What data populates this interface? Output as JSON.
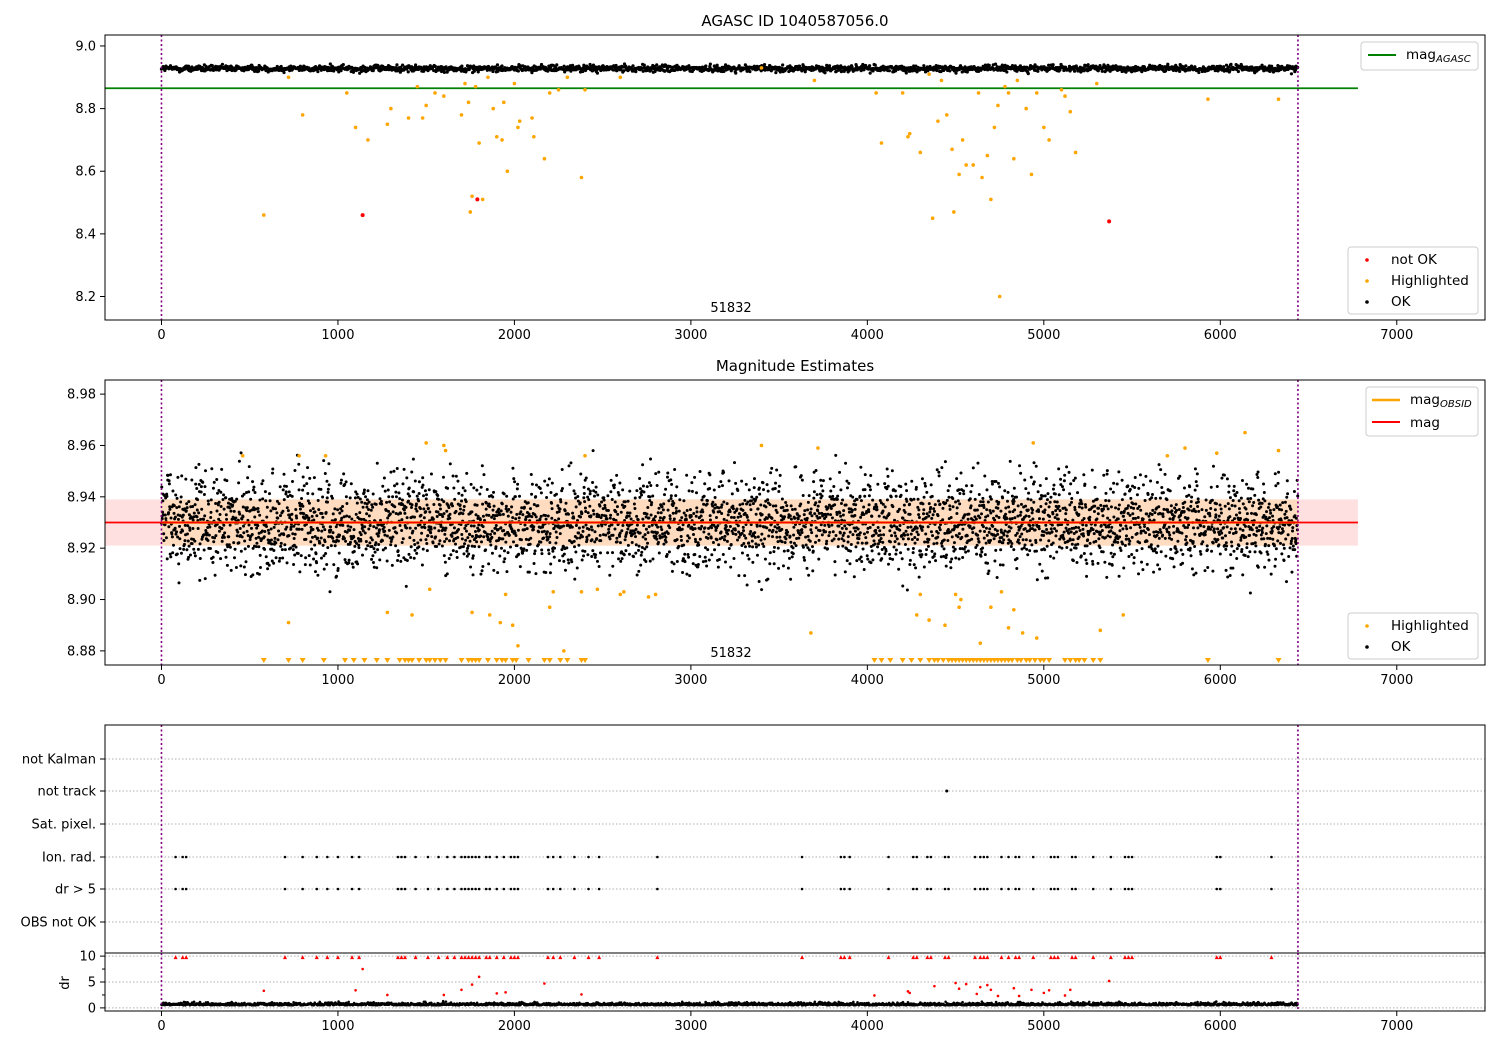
{
  "colors": {
    "ok": "#000000",
    "highlighted": "#ffa500",
    "not_ok": "#ff0000",
    "mag_agasc_line": "#008000",
    "mag_line": "#ff0000",
    "mag_obsid_line": "#ffa500",
    "band_fill": "#ffcccc",
    "obsid_band_fill": "#ffd8b0",
    "vline": "#800080",
    "grid": "#b0b0b0"
  },
  "chart_data": [
    {
      "type": "scatter",
      "title": "AGASC ID 1040587056.0",
      "xlim": [
        -320,
        7500
      ],
      "ylim": [
        8.125,
        9.035
      ],
      "xticks": [
        0,
        1000,
        2000,
        3000,
        4000,
        5000,
        6000,
        7000
      ],
      "yticks": [
        8.2,
        8.4,
        8.6,
        8.8,
        9.0
      ],
      "ytick_labels": [
        "8.2",
        "8.4",
        "8.6",
        "8.8",
        "9.0"
      ],
      "ok_band": {
        "center": 8.928,
        "spread": 0.01,
        "x_range": [
          0,
          6440
        ]
      },
      "highlighted_points": [
        [
          580,
          8.46
        ],
        [
          720,
          8.9
        ],
        [
          800,
          8.78
        ],
        [
          1050,
          8.85
        ],
        [
          1100,
          8.74
        ],
        [
          1170,
          8.7
        ],
        [
          1280,
          8.75
        ],
        [
          1300,
          8.8
        ],
        [
          1400,
          8.77
        ],
        [
          1450,
          8.87
        ],
        [
          1480,
          8.77
        ],
        [
          1500,
          8.81
        ],
        [
          1550,
          8.85
        ],
        [
          1600,
          8.84
        ],
        [
          1700,
          8.78
        ],
        [
          1720,
          8.88
        ],
        [
          1740,
          8.82
        ],
        [
          1750,
          8.47
        ],
        [
          1760,
          8.52
        ],
        [
          1780,
          8.87
        ],
        [
          1800,
          8.69
        ],
        [
          1820,
          8.51
        ],
        [
          1850,
          8.9
        ],
        [
          1880,
          8.8
        ],
        [
          1900,
          8.71
        ],
        [
          1930,
          8.7
        ],
        [
          1940,
          8.82
        ],
        [
          1960,
          8.6
        ],
        [
          2000,
          8.88
        ],
        [
          2020,
          8.74
        ],
        [
          2030,
          8.76
        ],
        [
          2100,
          8.77
        ],
        [
          2110,
          8.71
        ],
        [
          2170,
          8.64
        ],
        [
          2200,
          8.85
        ],
        [
          2250,
          8.86
        ],
        [
          2300,
          8.9
        ],
        [
          2380,
          8.58
        ],
        [
          2400,
          8.86
        ],
        [
          2600,
          8.9
        ],
        [
          3400,
          8.93
        ],
        [
          3700,
          8.89
        ],
        [
          4050,
          8.85
        ],
        [
          4080,
          8.69
        ],
        [
          4200,
          8.85
        ],
        [
          4230,
          8.71
        ],
        [
          4240,
          8.72
        ],
        [
          4300,
          8.66
        ],
        [
          4350,
          8.91
        ],
        [
          4370,
          8.45
        ],
        [
          4400,
          8.76
        ],
        [
          4420,
          8.89
        ],
        [
          4450,
          8.78
        ],
        [
          4480,
          8.67
        ],
        [
          4490,
          8.47
        ],
        [
          4520,
          8.59
        ],
        [
          4540,
          8.7
        ],
        [
          4560,
          8.62
        ],
        [
          4600,
          8.62
        ],
        [
          4630,
          8.85
        ],
        [
          4650,
          8.58
        ],
        [
          4680,
          8.65
        ],
        [
          4700,
          8.51
        ],
        [
          4720,
          8.74
        ],
        [
          4740,
          8.81
        ],
        [
          4750,
          8.2
        ],
        [
          4780,
          8.87
        ],
        [
          4800,
          8.85
        ],
        [
          4830,
          8.64
        ],
        [
          4850,
          8.89
        ],
        [
          4900,
          8.8
        ],
        [
          4930,
          8.59
        ],
        [
          4960,
          8.85
        ],
        [
          5000,
          8.74
        ],
        [
          5030,
          8.7
        ],
        [
          5100,
          8.86
        ],
        [
          5120,
          8.84
        ],
        [
          5150,
          8.79
        ],
        [
          5180,
          8.66
        ],
        [
          5300,
          8.88
        ],
        [
          5930,
          8.83
        ],
        [
          6330,
          8.83
        ]
      ],
      "not_ok_points": [
        [
          1140,
          8.46
        ],
        [
          1790,
          8.51
        ],
        [
          5370,
          8.44
        ]
      ],
      "hlines": [
        {
          "name": "mag_agasc",
          "y": 8.865,
          "x_range": [
            -320,
            6780
          ]
        }
      ],
      "vlines": [
        0,
        6440
      ],
      "annotation": "51832",
      "legend_lines": [
        "mag",
        "AGASC"
      ],
      "legend_points": [
        "not OK",
        "Highlighted",
        "OK"
      ]
    },
    {
      "type": "scatter",
      "title": "Magnitude Estimates",
      "xlim": [
        -320,
        7500
      ],
      "ylim": [
        8.8745,
        8.9855
      ],
      "xticks": [
        0,
        1000,
        2000,
        3000,
        4000,
        5000,
        6000,
        7000
      ],
      "yticks": [
        8.88,
        8.9,
        8.92,
        8.94,
        8.96,
        8.98
      ],
      "ytick_labels": [
        "8.88",
        "8.90",
        "8.92",
        "8.94",
        "8.96",
        "8.98"
      ],
      "mag": 8.93,
      "mag_band": [
        8.921,
        8.939
      ],
      "ok_band": {
        "center": 8.93,
        "spread": 0.009,
        "x_range": [
          0,
          6440
        ]
      },
      "highlighted_points": [
        [
          460,
          8.956
        ],
        [
          720,
          8.891
        ],
        [
          780,
          8.956
        ],
        [
          930,
          8.956
        ],
        [
          1280,
          8.895
        ],
        [
          1420,
          8.894
        ],
        [
          1500,
          8.961
        ],
        [
          1520,
          8.904
        ],
        [
          1600,
          8.96
        ],
        [
          1610,
          8.958
        ],
        [
          1760,
          8.895
        ],
        [
          1860,
          8.894
        ],
        [
          1920,
          8.891
        ],
        [
          1950,
          8.902
        ],
        [
          1990,
          8.89
        ],
        [
          2020,
          8.882
        ],
        [
          2200,
          8.897
        ],
        [
          2220,
          8.903
        ],
        [
          2280,
          8.88
        ],
        [
          2380,
          8.903
        ],
        [
          2400,
          8.956
        ],
        [
          2470,
          8.904
        ],
        [
          2600,
          8.902
        ],
        [
          2620,
          8.903
        ],
        [
          2760,
          8.901
        ],
        [
          2800,
          8.902
        ],
        [
          3400,
          8.96
        ],
        [
          3680,
          8.887
        ],
        [
          3720,
          8.959
        ],
        [
          4280,
          8.894
        ],
        [
          4300,
          8.902
        ],
        [
          4350,
          8.892
        ],
        [
          4440,
          8.89
        ],
        [
          4500,
          8.902
        ],
        [
          4520,
          8.897
        ],
        [
          4530,
          8.9
        ],
        [
          4640,
          8.883
        ],
        [
          4700,
          8.897
        ],
        [
          4760,
          8.903
        ],
        [
          4800,
          8.889
        ],
        [
          4830,
          8.896
        ],
        [
          4880,
          8.887
        ],
        [
          4940,
          8.961
        ],
        [
          4960,
          8.885
        ],
        [
          5320,
          8.888
        ],
        [
          5450,
          8.894
        ],
        [
          5700,
          8.956
        ],
        [
          5800,
          8.959
        ],
        [
          5980,
          8.957
        ],
        [
          6140,
          8.965
        ],
        [
          6330,
          8.958
        ]
      ],
      "clipped_markers_x": [
        580,
        720,
        800,
        920,
        1040,
        1090,
        1150,
        1220,
        1280,
        1350,
        1380,
        1400,
        1420,
        1460,
        1500,
        1520,
        1550,
        1580,
        1610,
        1700,
        1740,
        1760,
        1780,
        1800,
        1850,
        1900,
        1930,
        1950,
        1990,
        2010,
        2080,
        2170,
        2200,
        2260,
        2300,
        2380,
        2400,
        4040,
        4080,
        4130,
        4200,
        4250,
        4300,
        4350,
        4380,
        4400,
        4430,
        4460,
        4480,
        4500,
        4520,
        4540,
        4560,
        4580,
        4600,
        4620,
        4640,
        4660,
        4680,
        4700,
        4720,
        4740,
        4760,
        4780,
        4800,
        4820,
        4850,
        4870,
        4900,
        4920,
        4950,
        4980,
        5000,
        5030,
        5120,
        5150,
        5180,
        5200,
        5230,
        5280,
        5320,
        5930,
        6330
      ],
      "vlines": [
        0,
        6440
      ],
      "annotation": "51832",
      "legend_lines": [
        "mag",
        "OBSID",
        "mag"
      ],
      "legend_points": [
        "Highlighted",
        "OK"
      ]
    },
    {
      "type": "scatter",
      "title": "",
      "xlim": [
        -320,
        7500
      ],
      "categories": [
        "not Kalman",
        "not track",
        "Sat. pixel.",
        "Ion. rad.",
        "dr > 5",
        "OBS not OK"
      ],
      "flag_x": [
        80,
        120,
        140,
        700,
        800,
        880,
        940,
        1000,
        1080,
        1120,
        1340,
        1360,
        1380,
        1440,
        1510,
        1570,
        1620,
        1660,
        1700,
        1720,
        1740,
        1760,
        1780,
        1800,
        1840,
        1860,
        1900,
        1940,
        1980,
        2000,
        2020,
        2190,
        2220,
        2260,
        2340,
        2420,
        2480,
        2810,
        3630,
        3850,
        3870,
        3900,
        4120,
        4260,
        4280,
        4340,
        4360,
        4440,
        4460,
        4610,
        4640,
        4660,
        4680,
        4760,
        4800,
        4840,
        4860,
        4940,
        5040,
        5060,
        5080,
        5160,
        5180,
        5280,
        5380,
        5460,
        5480,
        5500,
        5980,
        6000,
        6290
      ],
      "not_track_x": [
        4450
      ],
      "dr": {
        "ylim": [
          -0.6,
          10.6
        ],
        "yticks": [
          0,
          5,
          10
        ],
        "minor_yticks": [
          2.5,
          7.5
        ],
        "ylabel": "dr",
        "baseline_center": 0.5,
        "outliers": [
          [
            580,
            3.3
          ],
          [
            1100,
            3.4
          ],
          [
            1140,
            7.5
          ],
          [
            1280,
            2.5
          ],
          [
            1600,
            2.5
          ],
          [
            1700,
            3.5
          ],
          [
            1760,
            4.5
          ],
          [
            1800,
            6
          ],
          [
            1900,
            2.8
          ],
          [
            1950,
            3
          ],
          [
            2170,
            4.7
          ],
          [
            2380,
            2.6
          ],
          [
            4040,
            2.4
          ],
          [
            4230,
            3.2
          ],
          [
            4240,
            2.9
          ],
          [
            4380,
            4.2
          ],
          [
            4500,
            4.8
          ],
          [
            4520,
            3.7
          ],
          [
            4560,
            4.6
          ],
          [
            4620,
            2.7
          ],
          [
            4640,
            4
          ],
          [
            4680,
            4.4
          ],
          [
            4700,
            3.5
          ],
          [
            4740,
            2.3
          ],
          [
            4830,
            3.8
          ],
          [
            4860,
            2.3
          ],
          [
            4930,
            3.5
          ],
          [
            5000,
            2.9
          ],
          [
            5030,
            3.4
          ],
          [
            5120,
            2.4
          ],
          [
            5150,
            3.5
          ],
          [
            5370,
            5.2
          ]
        ],
        "triangle_y": 9.8
      },
      "vlines": [
        0,
        6440
      ]
    }
  ]
}
